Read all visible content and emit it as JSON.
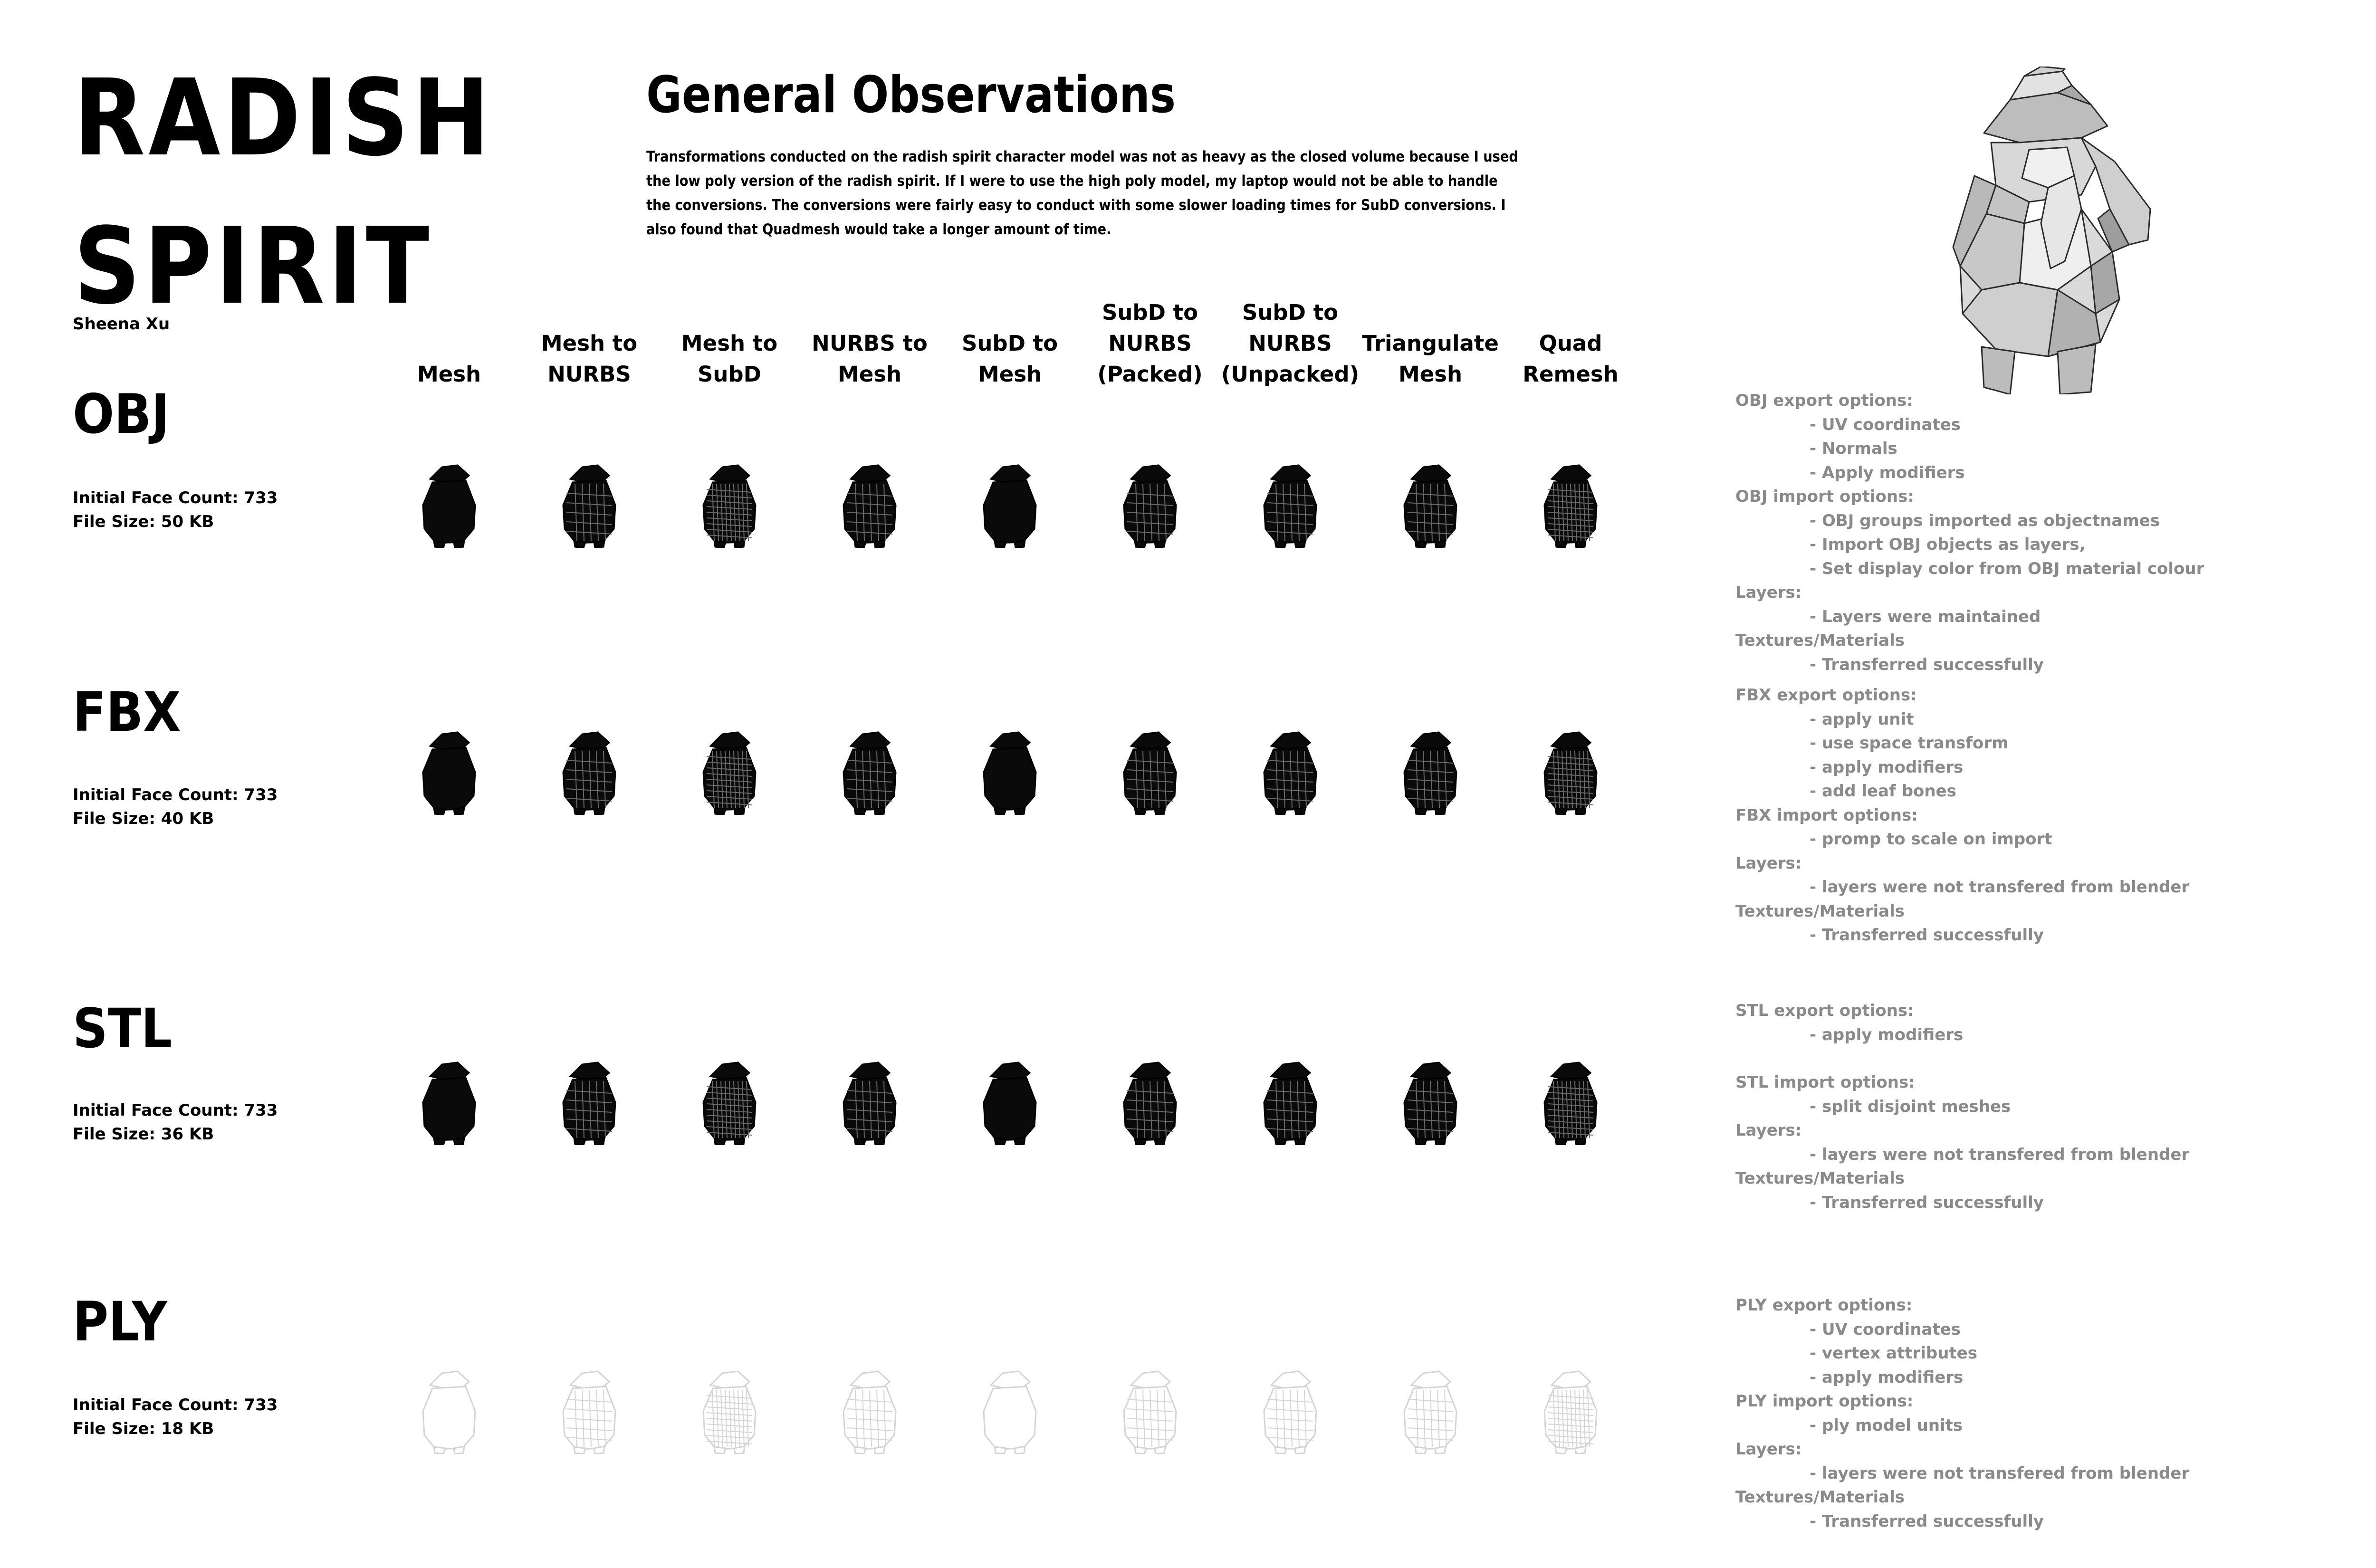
{
  "title": {
    "line1": "RADISH",
    "line2": "SPIRIT",
    "author": "Sheena Xu"
  },
  "observations": {
    "heading": "General Observations",
    "text": "Transformations conducted on the radish spirit character model was not as heavy as the closed volume because I used the low poly version of the radish spirit. If I were to use the high poly model, my laptop would not be able to handle the conversions. The conversions were fairly easy to conduct with some slower loading times for SubD conversions. I also found that Quadmesh would take a longer amount of time."
  },
  "columns": [
    "Mesh",
    "Mesh to\nNURBS",
    "Mesh to\nSubD",
    "NURBS to\nMesh",
    "SubD to\nMesh",
    "SubD to\nNURBS\n(Packed)",
    "SubD to\nNURBS\n(Unpacked)",
    "Triangulate\nMesh",
    "Quad\nRemesh"
  ],
  "formats": [
    {
      "name": "OBJ",
      "face_count": "Initial Face Count: 733",
      "file_size": "File Size: 50 KB"
    },
    {
      "name": "FBX",
      "face_count": "Initial Face Count: 733",
      "file_size": "File Size: 40 KB"
    },
    {
      "name": "STL",
      "face_count": "Initial Face Count: 733",
      "file_size": "File Size: 36 KB"
    },
    {
      "name": "PLY",
      "face_count": "Initial Face Count: 733",
      "file_size": "File Size: 18 KB"
    }
  ],
  "notes": {
    "obj": {
      "export_label": "OBJ export options:",
      "export_items": [
        "- UV coordinates",
        "- Normals",
        "- Apply modifiers"
      ],
      "import_label": "OBJ import options:",
      "import_items": [
        "- OBJ groups imported as objectnames",
        "- Import OBJ objects as layers,",
        "- Set display color from OBJ material colour"
      ],
      "layers_label": "Layers:",
      "layers_item": "- Layers were maintained",
      "textures_label": "Textures/Materials",
      "textures_item": "- Transferred successfully"
    },
    "fbx": {
      "export_label": "FBX export options:",
      "export_items": [
        "- apply unit",
        "- use space transform",
        "- apply modifiers",
        "- add leaf bones"
      ],
      "import_label": "FBX import options:",
      "import_items": [
        "- promp to scale on import"
      ],
      "layers_label": "Layers:",
      "layers_item": "- layers were not transfered from blender",
      "textures_label": "Textures/Materials",
      "textures_item": "- Transferred successfully"
    },
    "stl": {
      "export_label": "STL export options:",
      "export_items": [
        "- apply modifiers"
      ],
      "import_label": "STL import options:",
      "import_items": [
        "- split disjoint meshes"
      ],
      "layers_label": "Layers:",
      "layers_item": "- layers were not transfered from blender",
      "textures_label": "Textures/Materials",
      "textures_item": "- Transferred successfully"
    },
    "ply": {
      "export_label": "PLY export options:",
      "export_items": [
        "- UV coordinates",
        "- vertex attributes",
        "- apply modifiers"
      ],
      "import_label": "PLY import options:",
      "import_items": [
        "- ply model units"
      ],
      "layers_label": "Layers:",
      "layers_item": "- layers were not transfered from blender",
      "textures_label": "Textures/Materials",
      "textures_item": "- Transferred successfully"
    }
  },
  "colors": {
    "notes_text": "#8a8a8a",
    "model_dark": "#0a0a0a",
    "model_faded": "#d4d4d4",
    "hero_face": "#c9c9c9"
  }
}
